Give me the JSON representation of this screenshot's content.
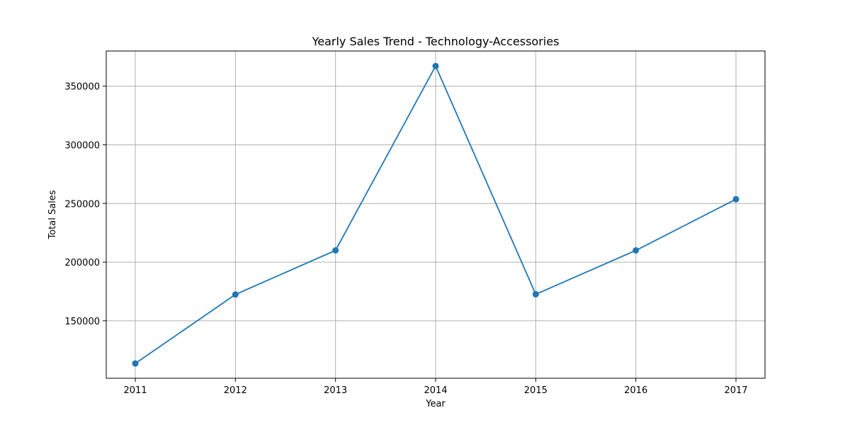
{
  "chart_data": {
    "type": "line",
    "title": "Yearly Sales Trend - Technology-Accessories",
    "xlabel": "Year",
    "ylabel": "Total Sales",
    "x": [
      2011,
      2012,
      2013,
      2014,
      2015,
      2016,
      2017
    ],
    "series": [
      {
        "values": [
          113600,
          172400,
          210000,
          367200,
          172600,
          210000,
          253600
        ]
      }
    ],
    "xlim": [
      2010.71,
      2017.29
    ],
    "ylim": [
      101000,
      380000
    ],
    "xticks": [
      "2011",
      "2012",
      "2013",
      "2014",
      "2015",
      "2016",
      "2017"
    ],
    "yticks": [
      "150000",
      "200000",
      "250000",
      "300000",
      "350000"
    ],
    "ytick_values": [
      150000,
      200000,
      250000,
      300000,
      350000
    ],
    "grid": true,
    "line_color": "#1f77b4",
    "marker": "circle"
  }
}
